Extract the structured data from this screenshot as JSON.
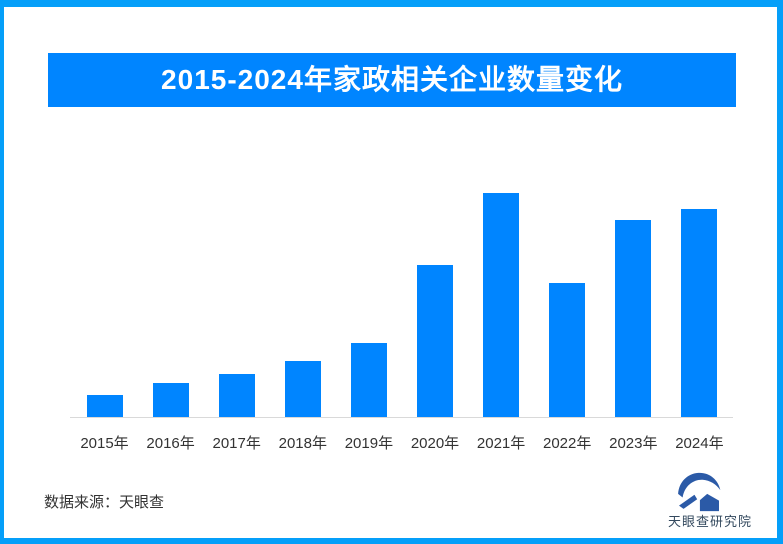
{
  "banner": {
    "title": "2015-2024年家政相关企业数量变化"
  },
  "source_note": "数据来源：天眼查",
  "logo": {
    "text": "天眼查研究院",
    "icon": "tianyancha-eye-logo"
  },
  "colors": {
    "frame": "#059FF9",
    "banner": "#0085FF",
    "bar": "#0085FF",
    "axis": "#D9D9D9",
    "label": "#333333",
    "logo_navy": "#2B5AA7",
    "logo_text": "#33495E"
  },
  "chart_data": {
    "type": "bar",
    "title": "2015-2024年家政相关企业数量变化",
    "categories": [
      "2015年",
      "2016年",
      "2017年",
      "2018年",
      "2019年",
      "2020年",
      "2021年",
      "2022年",
      "2023年",
      "2024年"
    ],
    "values": [
      10,
      15,
      19,
      25,
      33,
      68,
      100,
      60,
      88,
      93
    ],
    "value_scale": "relative units, tallest bar (2021) = 100; chart shows no y-axis ticks or data labels",
    "xlabel": "",
    "ylabel": "",
    "ylim": [
      0,
      100
    ],
    "grid": false,
    "legend": false,
    "bar_color": "#0085FF"
  }
}
